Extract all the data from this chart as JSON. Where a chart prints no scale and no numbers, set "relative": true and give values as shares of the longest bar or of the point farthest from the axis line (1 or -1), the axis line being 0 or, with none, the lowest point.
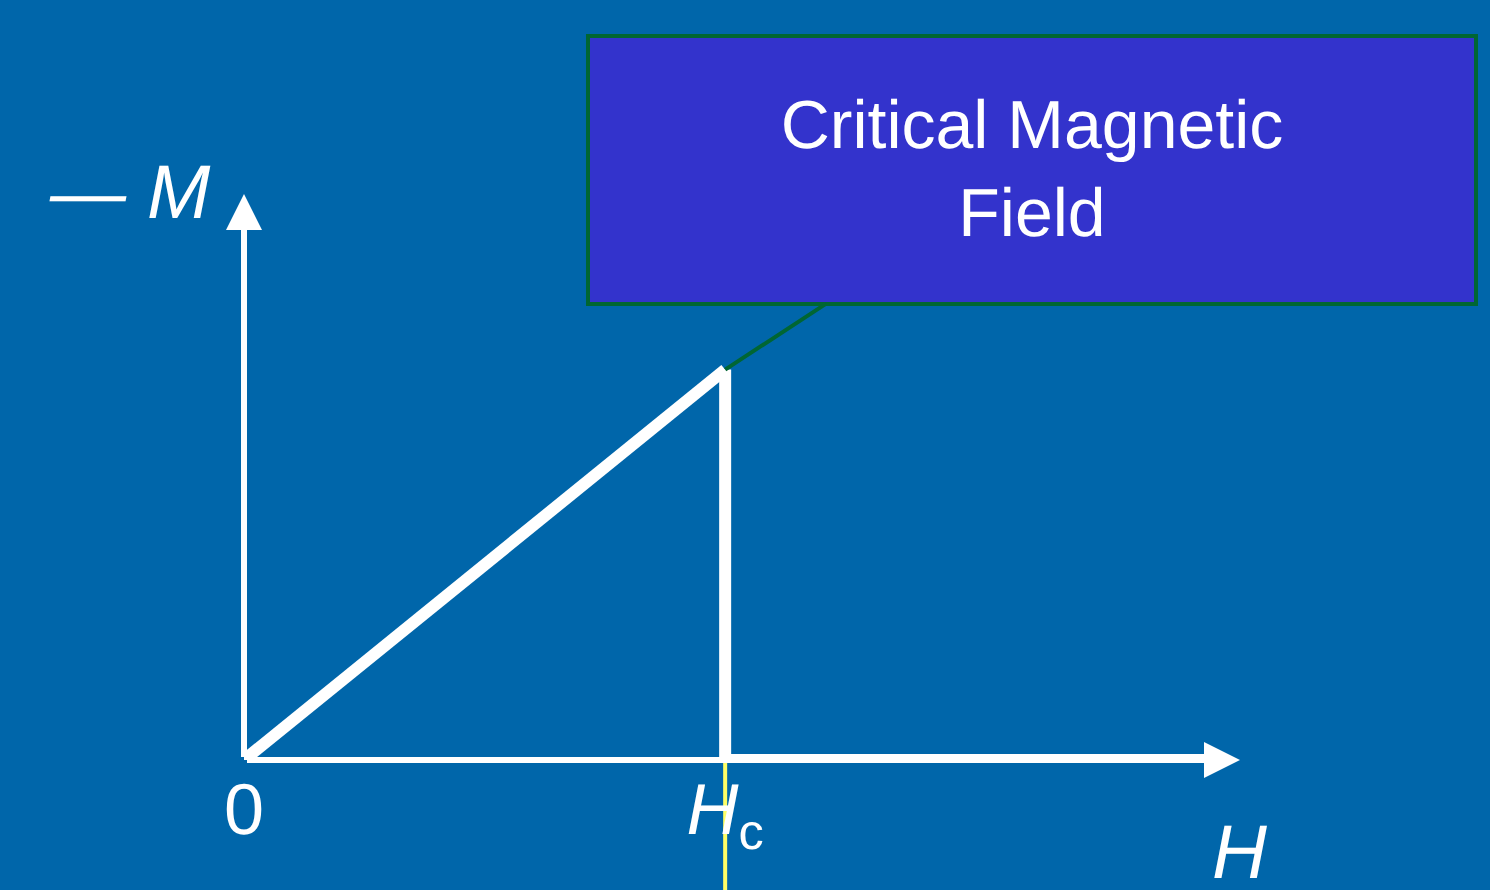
{
  "chart_data": {
    "type": "line",
    "relative": true,
    "xlabel": "H",
    "ylabel": "— M",
    "categories": [
      "0",
      "H$_{c}$",
      null
    ],
    "series": [
      {
        "color": "#ffffff",
        "values": [
          0,
          1,
          null
        ]
      },
      {
        "type": "step",
        "color": "#ffffff",
        "values": [
          null,
          1,
          0
        ]
      }
    ],
    "ref_lines": [
      {
        "axis": "x",
        "value": "H$_{c}$",
        "color": "#ffff66"
      }
    ],
    "annotations": [
      {
        "text": "Critical Magnetic\nField",
        "x": "H$_{c}$",
        "y": 1
      }
    ],
    "grid": false
  }
}
